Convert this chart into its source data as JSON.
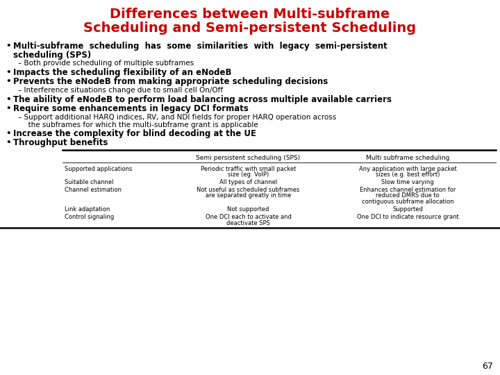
{
  "title_line1": "Differences between Multi-subframe",
  "title_line2": "Scheduling and Semi-persistent Scheduling",
  "title_color": "#cc0000",
  "background_color": "#ffffff",
  "bullet_points": [
    {
      "type": "bullet",
      "bold": true,
      "indent": 0,
      "text": "Multi-subframe  scheduling  has  some  similarities  with  legacy  semi-persistent\nscheduling (SPS)"
    },
    {
      "type": "sub",
      "bold": false,
      "indent": 1,
      "text": "– Both provide scheduling of multiple subframes"
    },
    {
      "type": "bullet",
      "bold": true,
      "indent": 0,
      "text": "Impacts the scheduling flexibility of an eNodeB"
    },
    {
      "type": "bullet",
      "bold": true,
      "indent": 0,
      "text": "Prevents the eNodeB from making appropriate scheduling decisions"
    },
    {
      "type": "sub",
      "bold": false,
      "indent": 1,
      "text": "– Interference situations change due to small cell On/Off"
    },
    {
      "type": "bullet",
      "bold": true,
      "indent": 0,
      "text": "The ability of eNodeB to perform load balancing across multiple available carriers"
    },
    {
      "type": "bullet",
      "bold": true,
      "indent": 0,
      "text": "Require some enhancements in legacy DCI formats"
    },
    {
      "type": "sub",
      "bold": false,
      "indent": 1,
      "text": "– Support additional HARQ indices, RV, and NDI fields for proper HARQ operation across\n  the subframes for which the multi-subframe grant is applicable"
    },
    {
      "type": "bullet",
      "bold": true,
      "indent": 0,
      "text": "Increase the complexity for blind decoding at the UE"
    },
    {
      "type": "bullet",
      "bold": true,
      "indent": 0,
      "text": "Throughput benefits"
    }
  ],
  "table_col_headers": [
    "",
    "Semi persistent scheduling (SPS)",
    "Multi subframe scheduling"
  ],
  "table_rows": [
    [
      "Supported applications",
      "Periodic traffic with small packet\nsize (eg. VoIP)",
      "Any application with large packet\nsizes (e.g. best effort)"
    ],
    [
      "Suitable channel",
      "All types of channel",
      "Slow time varying"
    ],
    [
      "Channel estimation",
      "Not useful as scheduled subframes\nare separated greatly in time",
      "Enhances channel estimation for\nreduced DMRS due to\ncontiguous subframe allocation"
    ],
    [
      "Link adaptation",
      "Not supported",
      "Supported"
    ],
    [
      "Control signaling",
      "One DCI each to activate and\ndeactivate SPS",
      "One DCI to indicate resource grant"
    ]
  ],
  "page_number": "67",
  "title_fontsize": 14,
  "bullet_fontsize": 8.5,
  "sub_fontsize": 7.5,
  "table_header_fontsize": 6.5,
  "table_cell_fontsize": 6.0,
  "page_num_fontsize": 9
}
